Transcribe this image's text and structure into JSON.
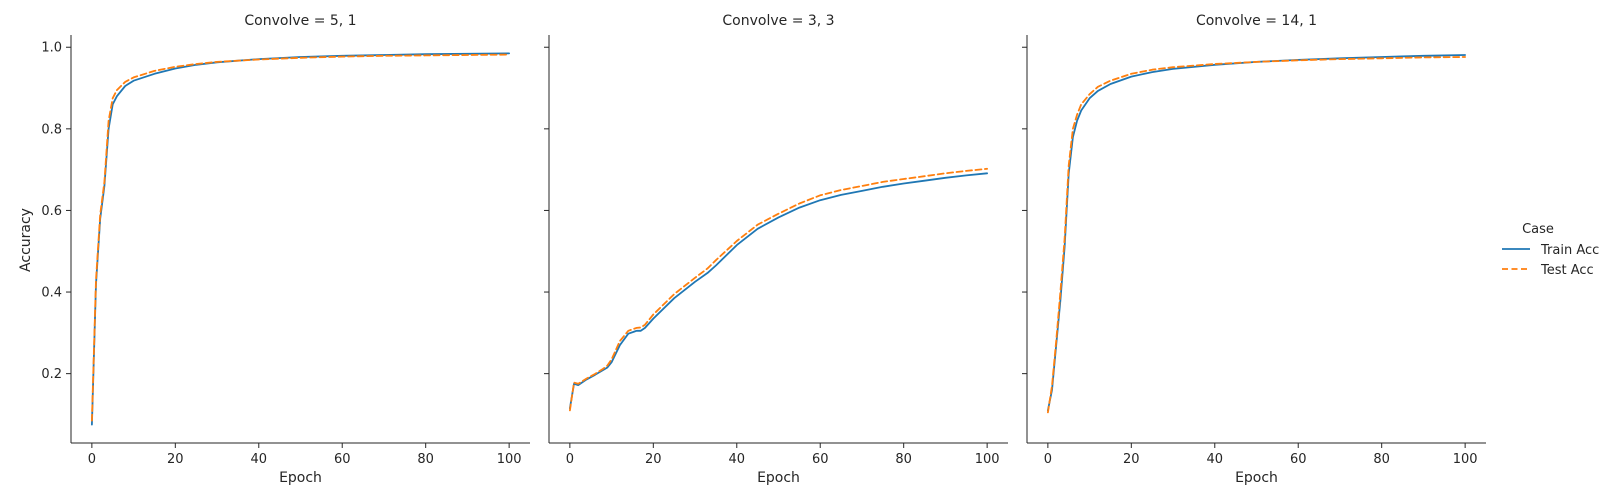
{
  "chart_data": {
    "type": "line",
    "xlabel": "Epoch",
    "ylabel": "Accuracy",
    "xlim": [
      -5,
      105
    ],
    "ylim": [
      0.03,
      1.03
    ],
    "xticks": [
      0,
      20,
      40,
      60,
      80,
      100
    ],
    "yticks": [
      0.2,
      0.4,
      0.6,
      0.8,
      1.0
    ],
    "ytick_labels": [
      "0.2",
      "0.4",
      "0.6",
      "0.8",
      "1.0"
    ],
    "legend": {
      "title": "Case",
      "position": "right",
      "entries": [
        {
          "name": "Train Acc",
          "color": "#1f77b4",
          "style": "solid"
        },
        {
          "name": "Test Acc",
          "color": "#ff7f0e",
          "style": "dashed"
        }
      ]
    },
    "panels": [
      {
        "title": "Convolve = 5, 1",
        "series": [
          {
            "name": "Train Acc",
            "x": [
              0,
              1,
              2,
              3,
              4,
              5,
              6,
              8,
              10,
              15,
              20,
              25,
              30,
              40,
              50,
              60,
              70,
              80,
              90,
              100
            ],
            "y": [
              0.075,
              0.42,
              0.58,
              0.66,
              0.8,
              0.86,
              0.88,
              0.905,
              0.918,
              0.935,
              0.948,
              0.957,
              0.963,
              0.971,
              0.976,
              0.979,
              0.981,
              0.983,
              0.984,
              0.985
            ]
          },
          {
            "name": "Test Acc",
            "x": [
              0,
              1,
              2,
              3,
              4,
              5,
              6,
              8,
              10,
              15,
              20,
              25,
              30,
              40,
              50,
              60,
              70,
              80,
              90,
              100
            ],
            "y": [
              0.085,
              0.43,
              0.59,
              0.67,
              0.82,
              0.875,
              0.895,
              0.915,
              0.926,
              0.942,
              0.952,
              0.959,
              0.964,
              0.97,
              0.974,
              0.977,
              0.979,
              0.98,
              0.981,
              0.982
            ]
          }
        ]
      },
      {
        "title": "Convolve = 3, 3",
        "series": [
          {
            "name": "Train Acc",
            "x": [
              0,
              1,
              2,
              4,
              6,
              8,
              9,
              10,
              12,
              14,
              16,
              17,
              18,
              20,
              25,
              30,
              33,
              35,
              40,
              45,
              50,
              55,
              60,
              65,
              70,
              75,
              80,
              85,
              90,
              95,
              100
            ],
            "y": [
              0.115,
              0.175,
              0.172,
              0.186,
              0.197,
              0.209,
              0.215,
              0.228,
              0.27,
              0.298,
              0.305,
              0.305,
              0.312,
              0.335,
              0.385,
              0.425,
              0.447,
              0.465,
              0.515,
              0.555,
              0.583,
              0.607,
              0.625,
              0.638,
              0.648,
              0.658,
              0.666,
              0.673,
              0.68,
              0.686,
              0.691
            ]
          },
          {
            "name": "Test Acc",
            "x": [
              0,
              1,
              2,
              4,
              6,
              8,
              9,
              10,
              12,
              14,
              16,
              17,
              18,
              20,
              25,
              30,
              33,
              35,
              40,
              45,
              50,
              55,
              60,
              65,
              70,
              75,
              80,
              85,
              90,
              95,
              100
            ],
            "y": [
              0.11,
              0.178,
              0.175,
              0.188,
              0.199,
              0.212,
              0.22,
              0.235,
              0.28,
              0.305,
              0.312,
              0.313,
              0.32,
              0.345,
              0.395,
              0.435,
              0.458,
              0.478,
              0.525,
              0.565,
              0.592,
              0.617,
              0.637,
              0.65,
              0.66,
              0.67,
              0.677,
              0.684,
              0.691,
              0.697,
              0.702
            ]
          }
        ]
      },
      {
        "title": "Convolve = 14, 1",
        "series": [
          {
            "name": "Train Acc",
            "x": [
              0,
              1,
              2,
              3,
              4,
              5,
              6,
              7,
              8,
              10,
              12,
              15,
              20,
              25,
              30,
              40,
              50,
              60,
              70,
              80,
              90,
              100
            ],
            "y": [
              0.11,
              0.16,
              0.27,
              0.38,
              0.51,
              0.69,
              0.78,
              0.82,
              0.845,
              0.875,
              0.893,
              0.91,
              0.928,
              0.939,
              0.947,
              0.957,
              0.964,
              0.969,
              0.973,
              0.976,
              0.979,
              0.981
            ]
          },
          {
            "name": "Test Acc",
            "x": [
              0,
              1,
              2,
              3,
              4,
              5,
              6,
              7,
              8,
              10,
              12,
              15,
              20,
              25,
              30,
              40,
              50,
              60,
              70,
              80,
              90,
              100
            ],
            "y": [
              0.105,
              0.17,
              0.28,
              0.4,
              0.53,
              0.71,
              0.8,
              0.835,
              0.86,
              0.885,
              0.903,
              0.918,
              0.935,
              0.945,
              0.951,
              0.959,
              0.964,
              0.968,
              0.971,
              0.973,
              0.975,
              0.976
            ]
          }
        ]
      }
    ]
  }
}
